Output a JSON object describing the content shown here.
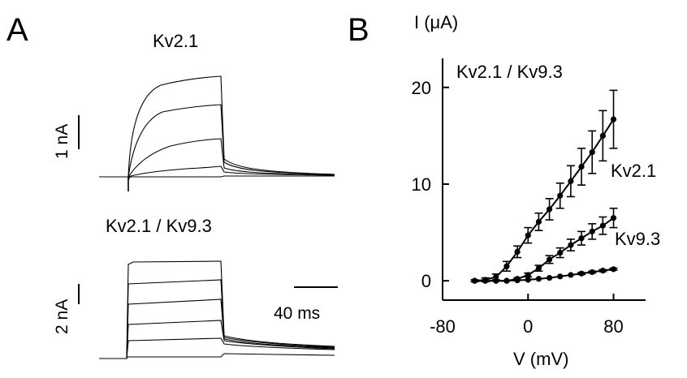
{
  "panel_a": {
    "letter": "A",
    "top_title": "Kv2.1",
    "bottom_title": "Kv2.1 / Kv9.3",
    "top_scale_label": "1 nA",
    "bottom_scale_label": "2 nA",
    "time_scale_label": "40 ms"
  },
  "panel_b": {
    "letter": "B"
  },
  "chart_data": {
    "type": "line",
    "title": "",
    "xlabel": "V (mV)",
    "ylabel": "I (μA)",
    "xlim": [
      -80,
      110
    ],
    "ylim": [
      -2,
      23
    ],
    "xticks": [
      -80,
      0,
      80
    ],
    "yticks": [
      0,
      10,
      20
    ],
    "grid": false,
    "x": [
      -50,
      -40,
      -30,
      -20,
      -10,
      0,
      10,
      20,
      30,
      40,
      50,
      60,
      70,
      80
    ],
    "series": [
      {
        "name": "Kv2.1 / Kv9.3",
        "values": [
          0,
          0.1,
          0.4,
          1.5,
          3.0,
          4.7,
          6.1,
          7.4,
          8.8,
          10.3,
          11.8,
          13.3,
          15.0,
          16.7
        ],
        "errors": [
          0.1,
          0.2,
          0.3,
          0.5,
          0.6,
          0.8,
          0.9,
          1.1,
          1.3,
          1.6,
          1.9,
          2.2,
          2.6,
          3.0
        ],
        "label_position": "top"
      },
      {
        "name": "Kv2.1",
        "values": [
          0,
          0,
          0,
          0,
          0.2,
          0.6,
          1.3,
          2.2,
          2.9,
          3.7,
          4.4,
          5.1,
          5.7,
          6.5
        ],
        "errors": [
          0,
          0,
          0,
          0,
          0.1,
          0.2,
          0.3,
          0.4,
          0.5,
          0.6,
          0.7,
          0.8,
          0.9,
          1.0
        ],
        "label_position": "middle"
      },
      {
        "name": "Kv9.3",
        "values": [
          0,
          0,
          0,
          0,
          0.05,
          0.1,
          0.2,
          0.3,
          0.45,
          0.6,
          0.75,
          0.9,
          1.05,
          1.2
        ],
        "errors": [
          0,
          0,
          0,
          0,
          0,
          0,
          0,
          0,
          0,
          0,
          0.1,
          0.1,
          0.1,
          0.1
        ],
        "label_position": "bottom"
      }
    ]
  }
}
